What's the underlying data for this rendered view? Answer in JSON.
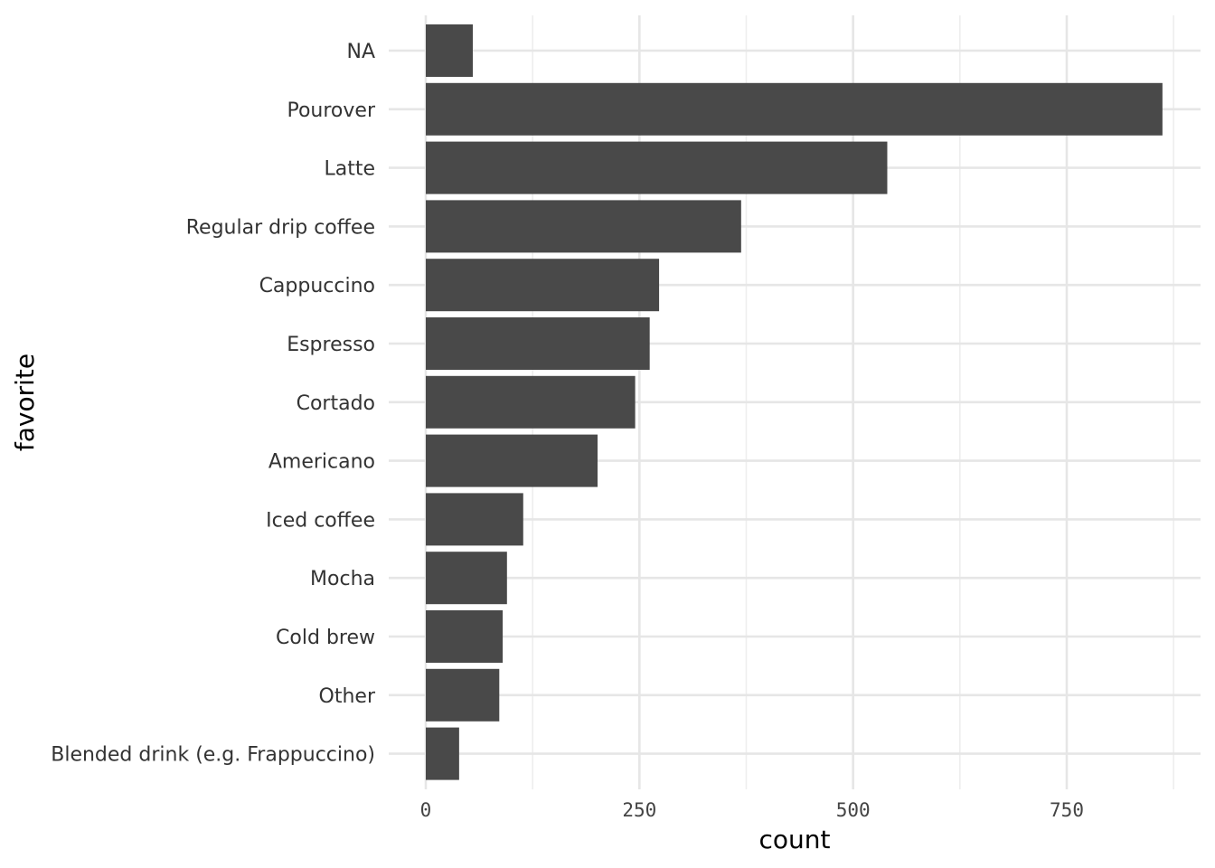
{
  "chart_data": {
    "type": "bar",
    "orientation": "horizontal",
    "categories": [
      "NA",
      "Pourover",
      "Latte",
      "Regular drip coffee",
      "Cappuccino",
      "Espresso",
      "Cortado",
      "Americano",
      "Iced coffee",
      "Mocha",
      "Cold brew",
      "Other",
      "Blended drink (e.g. Frappuccino)"
    ],
    "values": [
      55,
      862,
      540,
      369,
      273,
      262,
      245,
      201,
      114,
      95,
      90,
      86,
      39
    ],
    "xlabel": "count",
    "ylabel": "favorite",
    "xlim": [
      0,
      905
    ],
    "xticks": [
      0,
      250,
      500,
      750
    ],
    "xtick_labels": [
      "0",
      "250",
      "500",
      "750"
    ],
    "grid": true,
    "bar_color": "#494949",
    "grid_color": "#e6e6e6"
  }
}
